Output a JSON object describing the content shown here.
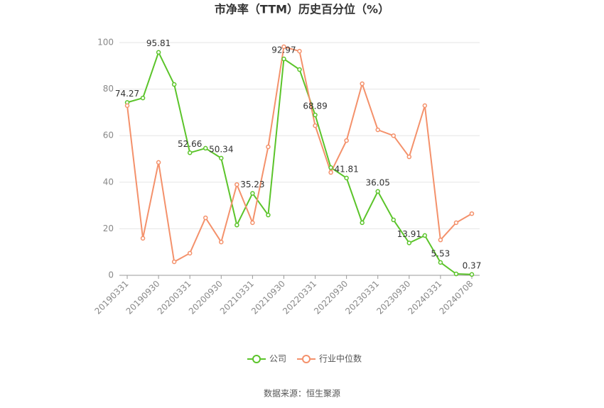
{
  "chart_data": {
    "type": "line",
    "title": "市净率（TTM）历史百分位（%）",
    "categories": [
      "20190331",
      null,
      "20190930",
      null,
      "20200331",
      null,
      "20200930",
      null,
      "20210331",
      null,
      "20210930",
      null,
      "20220331",
      null,
      "20220930",
      null,
      "20230331",
      null,
      "20230930",
      null,
      "20240331",
      null,
      "20240708"
    ],
    "series": [
      {
        "name": "公司",
        "color": "#5bc42a",
        "values": [
          74.27,
          76.2,
          95.81,
          82,
          52.66,
          54.6,
          50.34,
          21.6,
          35.23,
          25.9,
          92.97,
          88.4,
          68.89,
          46.3,
          41.81,
          22.6,
          36.05,
          23.8,
          13.91,
          17.1,
          5.53,
          0.6,
          0.37
        ],
        "value_labels": [
          "74.27",
          null,
          "95.81",
          null,
          "52.66",
          null,
          "50.34",
          null,
          "35.23",
          null,
          "92.97",
          null,
          "68.89",
          null,
          "41.81",
          null,
          "36.05",
          null,
          "13.91",
          null,
          "5.53",
          null,
          "0.37"
        ]
      },
      {
        "name": "行业中位数",
        "color": "#f4916b",
        "values": [
          72.9,
          15.9,
          48.5,
          5.8,
          9.5,
          24.7,
          14.3,
          39,
          22.6,
          55.2,
          98.2,
          96.3,
          64.3,
          44.2,
          57.9,
          82.3,
          62.5,
          60,
          50.9,
          72.9,
          15.2,
          22.6,
          26.5
        ]
      }
    ],
    "ylim": [
      0,
      100
    ],
    "yticks": [
      0,
      20,
      40,
      60,
      80,
      100
    ],
    "grid": true,
    "legend": "bottom",
    "source": "数据来源：恒生聚源"
  }
}
